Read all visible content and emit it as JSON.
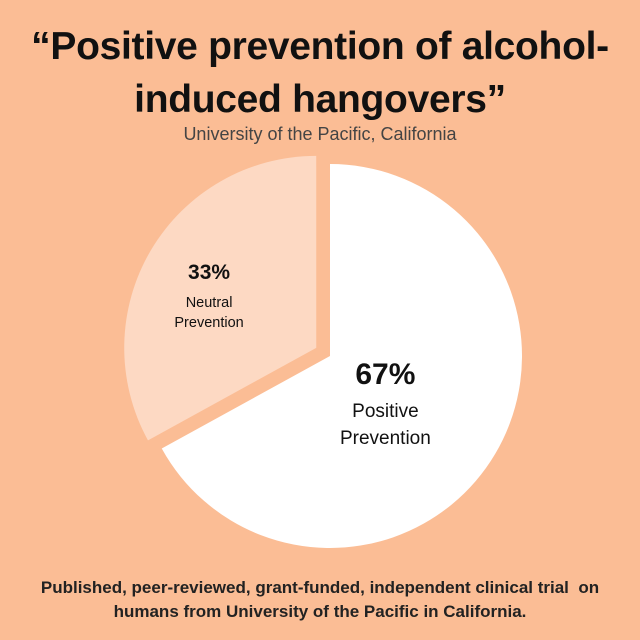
{
  "chart_data": {
    "type": "pie",
    "title": "“Positive prevention of alcohol-induced hangovers”",
    "subtitle": "University of the Pacific, California",
    "categories": [
      "Positive Prevention",
      "Neutral Prevention"
    ],
    "values": [
      67,
      33
    ],
    "value_labels": [
      "67%",
      "33%"
    ],
    "colors": [
      "#ffffff",
      "#fdd9c3"
    ],
    "background": "#fbbd95",
    "note": "Published, peer-reviewed, grant-funded, independent clinical trial  on humans from University of the Pacific in California."
  }
}
